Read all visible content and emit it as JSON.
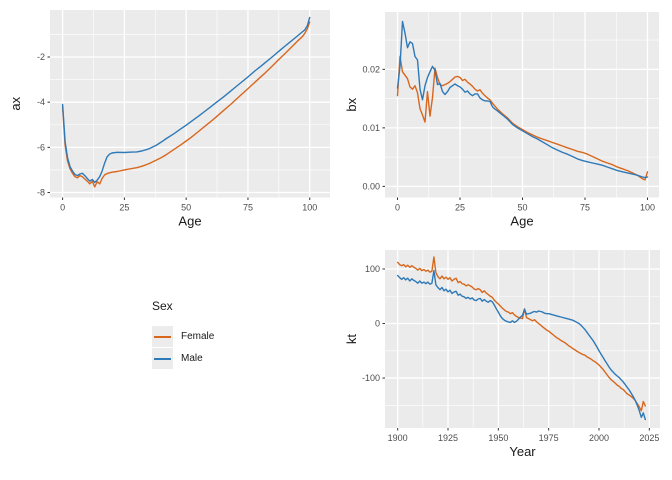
{
  "page": {
    "background": "#ffffff"
  },
  "palette": {
    "female": "#D8671E",
    "male": "#2E79B8",
    "panel_bg": "#EBEBEB",
    "grid_major": "#FFFFFF",
    "grid_minor": "#FFFFFF",
    "tick_mark": "#333333",
    "tick_label": "#4D4D4D",
    "axis_title": "#1A1A1A",
    "legend_key_bg": "#ECECEC"
  },
  "legend": {
    "title": "Sex",
    "position": "left-middle",
    "items": [
      {
        "label": "Female",
        "color_key": "female"
      },
      {
        "label": "Male",
        "color_key": "male"
      }
    ]
  },
  "chart_data": [
    {
      "id": "ax",
      "type": "line",
      "title": "",
      "xlabel": "Age",
      "ylabel": "ax",
      "grid": true,
      "legend_position": "collected",
      "xlim": [
        -5.1,
        108.2
      ],
      "ylim": [
        -8.22,
        0.08
      ],
      "xticks": {
        "values": [
          0,
          25,
          50,
          75,
          100
        ],
        "labels": [
          "0",
          "25",
          "50",
          "75",
          "100"
        ]
      },
      "yticks": {
        "values": [
          -2,
          -4,
          -6,
          -8
        ],
        "labels": [
          "-2",
          "-4",
          "-6",
          "-8"
        ]
      },
      "xticks_minor": [
        12.5,
        37.5,
        62.5,
        87.5
      ],
      "yticks_minor": [
        -1,
        -3,
        -5,
        -7
      ],
      "series": [
        {
          "name": "Female",
          "color_key": "female",
          "x": [
            0,
            1,
            2,
            3,
            4,
            5,
            6,
            7,
            8,
            9,
            10,
            11,
            12,
            13,
            14,
            15,
            16,
            17,
            18,
            20,
            22,
            25,
            28,
            30,
            32,
            35,
            38,
            40,
            42,
            45,
            48,
            50,
            52,
            55,
            58,
            60,
            62,
            65,
            68,
            70,
            72,
            75,
            78,
            80,
            82,
            85,
            88,
            90,
            92,
            95,
            97,
            98,
            99,
            100
          ],
          "y": [
            -4.2,
            -5.9,
            -6.6,
            -6.95,
            -7.15,
            -7.3,
            -7.35,
            -7.25,
            -7.3,
            -7.4,
            -7.5,
            -7.62,
            -7.5,
            -7.75,
            -7.52,
            -7.62,
            -7.38,
            -7.22,
            -7.16,
            -7.1,
            -7.07,
            -7.0,
            -6.94,
            -6.9,
            -6.84,
            -6.72,
            -6.56,
            -6.45,
            -6.32,
            -6.1,
            -5.88,
            -5.72,
            -5.56,
            -5.3,
            -5.03,
            -4.85,
            -4.67,
            -4.38,
            -4.1,
            -3.9,
            -3.7,
            -3.4,
            -3.1,
            -2.9,
            -2.7,
            -2.38,
            -2.06,
            -1.85,
            -1.63,
            -1.3,
            -1.1,
            -0.95,
            -0.75,
            -0.45
          ]
        },
        {
          "name": "Male",
          "color_key": "male",
          "x": [
            0,
            1,
            2,
            3,
            4,
            5,
            6,
            7,
            8,
            9,
            10,
            11,
            12,
            13,
            14,
            15,
            16,
            17,
            18,
            19,
            20,
            22,
            25,
            28,
            30,
            32,
            34,
            35,
            38,
            40,
            42,
            45,
            48,
            50,
            52,
            55,
            58,
            60,
            62,
            65,
            68,
            70,
            72,
            75,
            78,
            80,
            82,
            85,
            88,
            90,
            92,
            95,
            97,
            98,
            99,
            100
          ],
          "y": [
            -4.1,
            -5.75,
            -6.45,
            -6.85,
            -7.05,
            -7.2,
            -7.25,
            -7.18,
            -7.15,
            -7.25,
            -7.38,
            -7.5,
            -7.42,
            -7.55,
            -7.45,
            -7.3,
            -7.05,
            -6.7,
            -6.42,
            -6.3,
            -6.25,
            -6.22,
            -6.23,
            -6.21,
            -6.2,
            -6.16,
            -6.1,
            -6.06,
            -5.9,
            -5.76,
            -5.61,
            -5.4,
            -5.17,
            -5.02,
            -4.86,
            -4.62,
            -4.37,
            -4.2,
            -4.03,
            -3.78,
            -3.51,
            -3.33,
            -3.15,
            -2.88,
            -2.6,
            -2.43,
            -2.25,
            -1.98,
            -1.7,
            -1.52,
            -1.34,
            -1.07,
            -0.89,
            -0.8,
            -0.62,
            -0.25
          ]
        }
      ]
    },
    {
      "id": "bx",
      "type": "line",
      "title": "",
      "xlabel": "Age",
      "ylabel": "bx",
      "grid": true,
      "legend_position": "collected",
      "xlim": [
        -5,
        104.6
      ],
      "ylim": [
        -0.0019,
        0.0298
      ],
      "xticks": {
        "values": [
          0,
          25,
          50,
          75,
          100
        ],
        "labels": [
          "0",
          "25",
          "50",
          "75",
          "100"
        ]
      },
      "yticks": {
        "values": [
          0.0,
          0.01,
          0.02
        ],
        "labels": [
          "0.00",
          "0.01",
          "0.02"
        ]
      },
      "xticks_minor": [
        12.5,
        37.5,
        62.5,
        87.5
      ],
      "yticks_minor": [
        0.005,
        0.015,
        0.025
      ],
      "series": [
        {
          "name": "Female",
          "color_key": "female",
          "x": [
            0,
            1,
            2,
            3,
            4,
            5,
            6,
            7,
            8,
            9,
            10,
            11,
            12,
            13,
            14,
            15,
            16,
            17,
            18,
            19,
            20,
            21,
            22,
            23,
            24,
            25,
            26,
            27,
            28,
            29,
            30,
            31,
            32,
            33,
            34,
            35,
            36,
            37,
            38,
            39,
            40,
            42,
            44,
            46,
            48,
            50,
            52,
            54,
            56,
            58,
            60,
            62,
            64,
            66,
            68,
            70,
            72,
            74,
            76,
            78,
            80,
            82,
            84,
            86,
            88,
            90,
            92,
            94,
            96,
            98,
            99,
            100
          ],
          "y": [
            0.0155,
            0.0222,
            0.0196,
            0.019,
            0.0184,
            0.017,
            0.0166,
            0.0172,
            0.016,
            0.0133,
            0.0122,
            0.011,
            0.0162,
            0.012,
            0.0152,
            0.0202,
            0.0186,
            0.0174,
            0.0172,
            0.0174,
            0.0176,
            0.0179,
            0.0183,
            0.0187,
            0.0188,
            0.0186,
            0.0181,
            0.0183,
            0.0178,
            0.0175,
            0.0171,
            0.0166,
            0.0163,
            0.0165,
            0.0159,
            0.0155,
            0.0151,
            0.0148,
            0.0142,
            0.0137,
            0.0132,
            0.0124,
            0.0117,
            0.0108,
            0.0102,
            0.0097,
            0.0092,
            0.0088,
            0.0084,
            0.0081,
            0.0078,
            0.0075,
            0.0072,
            0.0069,
            0.0066,
            0.0063,
            0.006,
            0.0058,
            0.0055,
            0.0051,
            0.0047,
            0.0043,
            0.004,
            0.0037,
            0.0033,
            0.003,
            0.0027,
            0.0023,
            0.0019,
            0.0013,
            0.0011,
            0.0025
          ]
        },
        {
          "name": "Male",
          "color_key": "male",
          "x": [
            0,
            1,
            2,
            3,
            4,
            5,
            6,
            7,
            8,
            9,
            10,
            11,
            12,
            13,
            14,
            15,
            16,
            17,
            18,
            19,
            20,
            21,
            22,
            23,
            24,
            25,
            26,
            27,
            28,
            29,
            30,
            31,
            32,
            33,
            34,
            35,
            36,
            37,
            38,
            39,
            40,
            42,
            44,
            46,
            48,
            50,
            52,
            54,
            56,
            58,
            60,
            62,
            64,
            66,
            68,
            70,
            72,
            74,
            76,
            78,
            80,
            82,
            84,
            86,
            88,
            90,
            92,
            94,
            96,
            98,
            99,
            100
          ],
          "y": [
            0.0168,
            0.0205,
            0.0282,
            0.0262,
            0.0237,
            0.0247,
            0.0244,
            0.0222,
            0.0216,
            0.0166,
            0.0148,
            0.0172,
            0.0186,
            0.0196,
            0.0205,
            0.0198,
            0.0174,
            0.0176,
            0.0162,
            0.0157,
            0.0162,
            0.0169,
            0.0172,
            0.0175,
            0.0172,
            0.017,
            0.0166,
            0.0161,
            0.0163,
            0.0158,
            0.0155,
            0.0158,
            0.0158,
            0.0151,
            0.0148,
            0.0146,
            0.0146,
            0.0145,
            0.0136,
            0.0132,
            0.0129,
            0.0122,
            0.0115,
            0.0106,
            0.01,
            0.0095,
            0.009,
            0.0085,
            0.0081,
            0.0076,
            0.0071,
            0.0066,
            0.0062,
            0.0058,
            0.0055,
            0.0051,
            0.0047,
            0.0044,
            0.0042,
            0.004,
            0.0038,
            0.0036,
            0.0033,
            0.003,
            0.0027,
            0.0025,
            0.0023,
            0.0021,
            0.0019,
            0.0016,
            0.0015,
            0.0016
          ]
        }
      ]
    },
    {
      "id": "kt",
      "type": "line",
      "title": "",
      "xlabel": "Year",
      "ylabel": "kt",
      "grid": true,
      "legend_position": "collected",
      "xlim": [
        1893.7,
        2030.3
      ],
      "ylim": [
        -191.6,
        134.8
      ],
      "xticks": {
        "values": [
          1900,
          1925,
          1950,
          1975,
          2000,
          2025
        ],
        "labels": [
          "1900",
          "1925",
          "1950",
          "1975",
          "2000",
          "2025"
        ]
      },
      "yticks": {
        "values": [
          100,
          0,
          -100
        ],
        "labels": [
          "100",
          "0",
          "-100"
        ]
      },
      "xticks_minor": [
        1912.5,
        1937.5,
        1962.5,
        1987.5,
        2012.5
      ],
      "yticks_minor": [
        50,
        -50,
        -150
      ],
      "series": [
        {
          "name": "Female",
          "color_key": "female",
          "x_start": 1900,
          "y": [
            112,
            108,
            106,
            108,
            104,
            107,
            103,
            106,
            103,
            101,
            98,
            101,
            97,
            99,
            96,
            98,
            94,
            96,
            122,
            93,
            86,
            82,
            87,
            82,
            85,
            81,
            84,
            78,
            81,
            83,
            75,
            77,
            73,
            72,
            69,
            71,
            69,
            67,
            63,
            62,
            64,
            62,
            57,
            60,
            56,
            53,
            50,
            48,
            43,
            39,
            36,
            32,
            28,
            25,
            22,
            21,
            18,
            20,
            16,
            13,
            11,
            10,
            9,
            27,
            11,
            9,
            7,
            5,
            7,
            3,
            0,
            -3,
            -6,
            -9,
            -12,
            -14,
            -17,
            -20,
            -23,
            -26,
            -28,
            -31,
            -33,
            -35,
            -38,
            -41,
            -43,
            -46,
            -48,
            -51,
            -53,
            -55,
            -57,
            -58,
            -61,
            -63,
            -65,
            -68,
            -70,
            -73,
            -76,
            -80,
            -84,
            -89,
            -94,
            -99,
            -103,
            -106,
            -109,
            -113,
            -115,
            -119,
            -121,
            -125,
            -129,
            -131,
            -134,
            -137,
            -141,
            -147,
            -153,
            -160,
            -143,
            -151
          ]
        },
        {
          "name": "Male",
          "color_key": "male",
          "x_start": 1900,
          "y": [
            88,
            84,
            81,
            84,
            80,
            83,
            78,
            82,
            79,
            77,
            74,
            78,
            74,
            76,
            73,
            76,
            72,
            74,
            97,
            71,
            66,
            62,
            66,
            60,
            63,
            58,
            61,
            55,
            58,
            59,
            52,
            54,
            50,
            49,
            46,
            48,
            45,
            47,
            43,
            42,
            45,
            46,
            41,
            44,
            41,
            39,
            42,
            40,
            34,
            27,
            21,
            14,
            9,
            6,
            4,
            3,
            2,
            5,
            2,
            4,
            8,
            12,
            15,
            26,
            17,
            18,
            19,
            21,
            22,
            21,
            23,
            22,
            21,
            19,
            18,
            18,
            17,
            16,
            15,
            14,
            13,
            12,
            11,
            10,
            9,
            8,
            7,
            6,
            4,
            2,
            0,
            -3,
            -7,
            -11,
            -16,
            -21,
            -26,
            -31,
            -37,
            -43,
            -50,
            -56,
            -62,
            -68,
            -74,
            -80,
            -85,
            -89,
            -93,
            -96,
            -99,
            -103,
            -107,
            -112,
            -117,
            -122,
            -128,
            -134,
            -141,
            -150,
            -160,
            -172,
            -164,
            -176
          ]
        }
      ]
    }
  ]
}
